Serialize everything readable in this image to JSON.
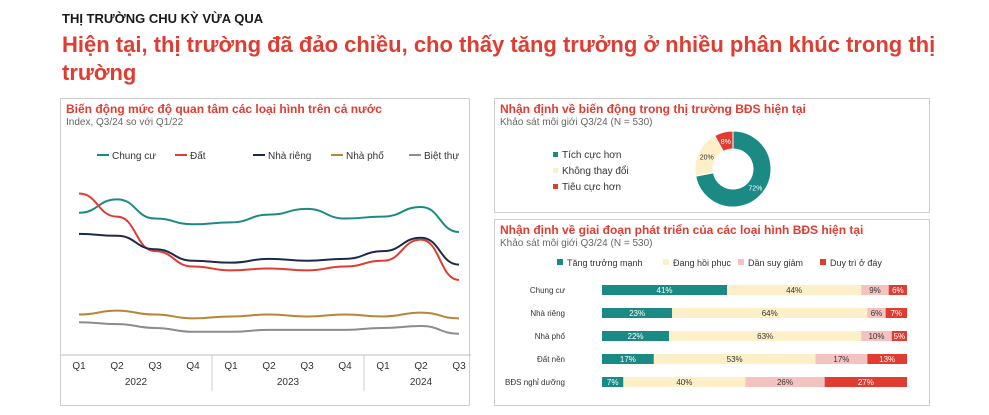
{
  "header": {
    "kicker": "THỊ TRƯỜNG CHU KỲ VỪA QUA",
    "headline": "Hiện tại, thị trường đã đảo chiều, cho thấy tăng trưởng ở nhiều phân khúc trong thị trường"
  },
  "colors": {
    "accent_red": "#e03c31",
    "teal": "#1b8a84",
    "cream": "#fdf0c8",
    "pink": "#f4c3c0",
    "red": "#e03c31",
    "navy": "#1b2a4a",
    "brown": "#b5863a",
    "gray": "#8c8c8c"
  },
  "chart_data": [
    {
      "type": "line",
      "title": "Biến động mức độ quan tâm các loại hình trên cả nước",
      "subtitle": "Index, Q3/24 so với Q1/22",
      "categories": [
        "Q1",
        "Q2",
        "Q3",
        "Q4",
        "Q1",
        "Q2",
        "Q3",
        "Q4",
        "Q1",
        "Q2",
        "Q3"
      ],
      "groups": [
        {
          "label": "2022",
          "start": 0,
          "end": 3
        },
        {
          "label": "2023",
          "start": 4,
          "end": 7
        },
        {
          "label": "2024",
          "start": 8,
          "end": 10
        }
      ],
      "ylim": [
        0,
        100
      ],
      "grid": false,
      "legend": "top",
      "series": [
        {
          "name": "Chung cư",
          "color": "#1b8a84",
          "values": [
            72,
            79,
            69,
            66,
            67,
            71,
            74,
            69,
            70,
            75,
            62
          ]
        },
        {
          "name": "Đất",
          "color": "#e03c31",
          "values": [
            82,
            70,
            52,
            44,
            42,
            43,
            42,
            44,
            47,
            58,
            37
          ]
        },
        {
          "name": "Nhà riêng",
          "color": "#1b2a4a",
          "values": [
            61,
            60,
            53,
            47,
            46,
            48,
            47,
            48,
            52,
            59,
            45
          ]
        },
        {
          "name": "Nhà phố",
          "color": "#b5863a",
          "values": [
            19,
            21,
            19,
            17,
            18,
            19,
            18,
            19,
            18,
            20,
            17
          ]
        },
        {
          "name": "Biệt thự",
          "color": "#8c8c8c",
          "values": [
            15,
            14,
            12,
            10,
            10,
            11,
            11,
            11,
            12,
            13,
            9
          ]
        }
      ]
    },
    {
      "type": "pie",
      "title": "Nhận định về biến động trong thị trường BĐS hiện tại",
      "subtitle": "Khảo sát môi giới Q3/24 (N = 530)",
      "legend": "left",
      "slices": [
        {
          "name": "Tích cực hơn",
          "value": 72,
          "label": "72%",
          "color": "#1b8a84"
        },
        {
          "name": "Không thay đổi",
          "value": 20,
          "label": "20%",
          "color": "#fdf0c8"
        },
        {
          "name": "Tiêu cực hơn",
          "value": 8,
          "label": "8%",
          "color": "#e03c31"
        }
      ]
    },
    {
      "type": "bar",
      "orientation": "horizontal",
      "stacked": true,
      "title": "Nhận định về giai đoạn phát triển của các loại hình BĐS hiện tại",
      "subtitle": "Khảo sát môi giới Q3/24 (N = 530)",
      "legend": "top",
      "categories": [
        "Chung cư",
        "Nhà riêng",
        "Nhà phố",
        "Đất nền",
        "BĐS nghỉ dưỡng"
      ],
      "series": [
        {
          "name": "Tăng trưởng mạnh",
          "color": "#1b8a84",
          "values": [
            41,
            23,
            22,
            17,
            7
          ],
          "labels": [
            "41%",
            "23%",
            "22%",
            "17%",
            "7%"
          ]
        },
        {
          "name": "Đang hồi phục",
          "color": "#fdf0c8",
          "values": [
            44,
            64,
            63,
            53,
            40
          ],
          "labels": [
            "44%",
            "64%",
            "63%",
            "53%",
            "40%"
          ]
        },
        {
          "name": "Dần suy giảm",
          "color": "#f4c3c0",
          "values": [
            9,
            6,
            10,
            17,
            26
          ],
          "labels": [
            "9%",
            "6%",
            "10%",
            "17%",
            "26%"
          ]
        },
        {
          "name": "Duy trì ở đáy",
          "color": "#e03c31",
          "values": [
            6,
            7,
            5,
            13,
            27
          ],
          "labels": [
            "6%",
            "7%",
            "5%",
            "13%",
            "27%"
          ]
        }
      ]
    }
  ]
}
